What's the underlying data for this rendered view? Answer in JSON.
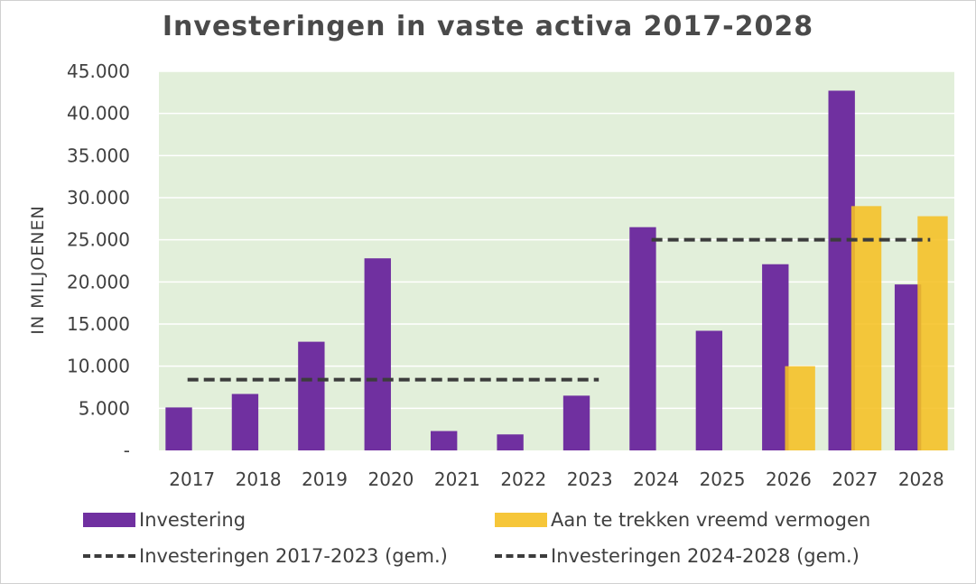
{
  "chart_data": {
    "type": "bar",
    "title": "Investeringen in vaste activa 2017-2028",
    "ylabel": "IN MILJOENEN",
    "xlabel": "",
    "ylim": [
      0,
      45000
    ],
    "ytick_labels": [
      "-",
      "5.000",
      "10.000",
      "15.000",
      "20.000",
      "25.000",
      "30.000",
      "35.000",
      "40.000",
      "45.000"
    ],
    "categories": [
      "2017",
      "2018",
      "2019",
      "2020",
      "2021",
      "2022",
      "2023",
      "2024",
      "2025",
      "2026",
      "2027",
      "2028"
    ],
    "grid": true,
    "legend_position": "bottom",
    "series": [
      {
        "name": "Investering",
        "kind": "bar",
        "color": "#7030a0",
        "values": [
          5100,
          6700,
          12900,
          22800,
          2300,
          1900,
          6500,
          26500,
          14200,
          22100,
          42700,
          19700
        ]
      },
      {
        "name": "Aan te trekken vreemd vermogen",
        "kind": "bar",
        "color": "#f5c023",
        "values": [
          null,
          null,
          null,
          null,
          null,
          null,
          null,
          null,
          null,
          10000,
          29000,
          27800
        ]
      },
      {
        "name": "Investeringen 2017-2023 (gem.)",
        "kind": "dashed-line",
        "color": "#3c3c3c",
        "value": 8400,
        "from": "2017",
        "to": "2023"
      },
      {
        "name": "Investeringen 2024-2028 (gem.)",
        "kind": "dashed-line",
        "color": "#3c3c3c",
        "value": 25000,
        "from": "2024",
        "to": "2028"
      }
    ],
    "plot_background": "#e2efda"
  }
}
